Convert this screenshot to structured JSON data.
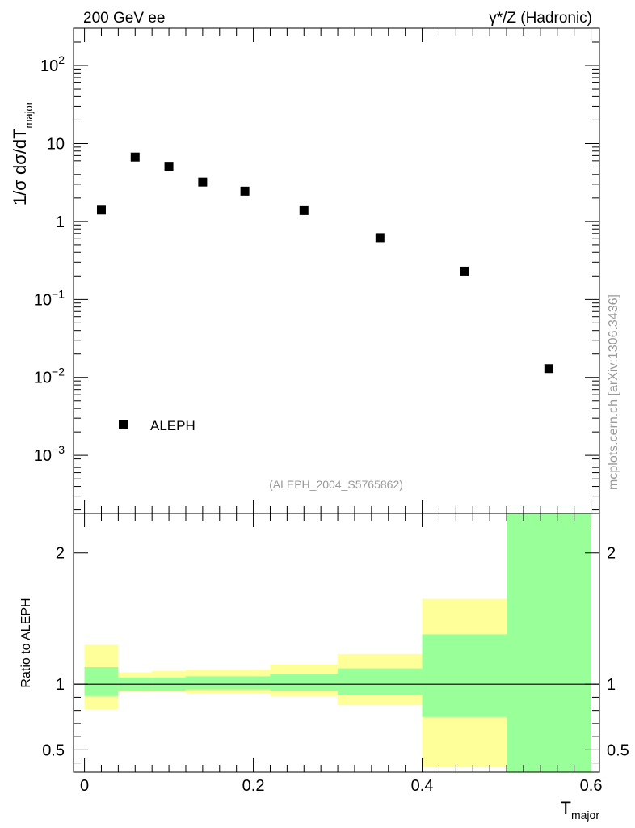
{
  "header": {
    "left": "200 GeV ee",
    "right": "γ*/Z (Hadronic)"
  },
  "watermark": "mcplots.cern.ch [arXiv:1306.3436]",
  "source_label": "(ALEPH_2004_S5765862)",
  "colors": {
    "data_marker": "#000000",
    "band_inner": "#99ff99",
    "band_outer": "#ffff99",
    "watermark": "#999999"
  },
  "chart_data": [
    {
      "type": "scatter",
      "y_scale": "log",
      "ylabel_main": "1/σ  dσ/dT",
      "ylabel_sub": "major",
      "ylim": [
        0.00018,
        300
      ],
      "y_ticks": [
        {
          "value": 100,
          "base": "10",
          "exp": "2"
        },
        {
          "value": 10,
          "base": "10",
          "exp": ""
        },
        {
          "value": 1,
          "base": "1",
          "exp": ""
        },
        {
          "value": 0.1,
          "base": "10",
          "exp": "−1"
        },
        {
          "value": 0.01,
          "base": "10",
          "exp": "−2"
        },
        {
          "value": 0.001,
          "base": "10",
          "exp": "−3"
        }
      ],
      "xlim": [
        -0.013,
        0.61
      ],
      "series": [
        {
          "name": "ALEPH",
          "marker": "square",
          "x": [
            0.02,
            0.06,
            0.1,
            0.14,
            0.19,
            0.26,
            0.35,
            0.45,
            0.55
          ],
          "y": [
            1.4,
            6.7,
            5.1,
            3.2,
            2.45,
            1.38,
            0.62,
            0.23,
            0.013
          ]
        }
      ],
      "legend_position": "lower-left"
    },
    {
      "type": "area",
      "ylabel": "Ratio to ALEPH",
      "xlabel_main": "T",
      "xlabel_sub": "major",
      "xlim": [
        -0.013,
        0.61
      ],
      "ylim": [
        0.33,
        2.3
      ],
      "x_ticks": [
        {
          "value": 0,
          "label": "0"
        },
        {
          "value": 0.2,
          "label": "0.2"
        },
        {
          "value": 0.4,
          "label": "0.4"
        },
        {
          "value": 0.6,
          "label": "0.6"
        }
      ],
      "y_ticks": [
        {
          "value": 2,
          "label": "2"
        },
        {
          "value": 1,
          "label": "1"
        },
        {
          "value": 0.5,
          "label": "0.5"
        }
      ],
      "reference_line": 1,
      "bins": [
        {
          "lo": 0.0,
          "hi": 0.04,
          "inner": [
            0.91,
            1.13
          ],
          "outer": [
            0.81,
            1.3
          ]
        },
        {
          "lo": 0.04,
          "hi": 0.08,
          "inner": [
            0.95,
            1.05
          ],
          "outer": [
            0.94,
            1.09
          ]
        },
        {
          "lo": 0.08,
          "hi": 0.12,
          "inner": [
            0.95,
            1.05
          ],
          "outer": [
            0.94,
            1.1
          ]
        },
        {
          "lo": 0.12,
          "hi": 0.2,
          "inner": [
            0.96,
            1.06
          ],
          "outer": [
            0.93,
            1.11
          ]
        },
        {
          "lo": 0.2,
          "hi": 0.22,
          "inner": [
            0.96,
            1.06
          ],
          "outer": [
            0.93,
            1.11
          ]
        },
        {
          "lo": 0.22,
          "hi": 0.3,
          "inner": [
            0.95,
            1.08
          ],
          "outer": [
            0.91,
            1.15
          ]
        },
        {
          "lo": 0.3,
          "hi": 0.4,
          "inner": [
            0.92,
            1.12
          ],
          "outer": [
            0.84,
            1.23
          ]
        },
        {
          "lo": 0.4,
          "hi": 0.5,
          "inner": [
            0.75,
            1.38
          ],
          "outer": [
            0.37,
            1.65
          ]
        },
        {
          "lo": 0.5,
          "hi": 0.6,
          "inner": [
            0.33,
            2.3
          ],
          "outer": [
            0.33,
            2.3
          ]
        }
      ]
    }
  ]
}
